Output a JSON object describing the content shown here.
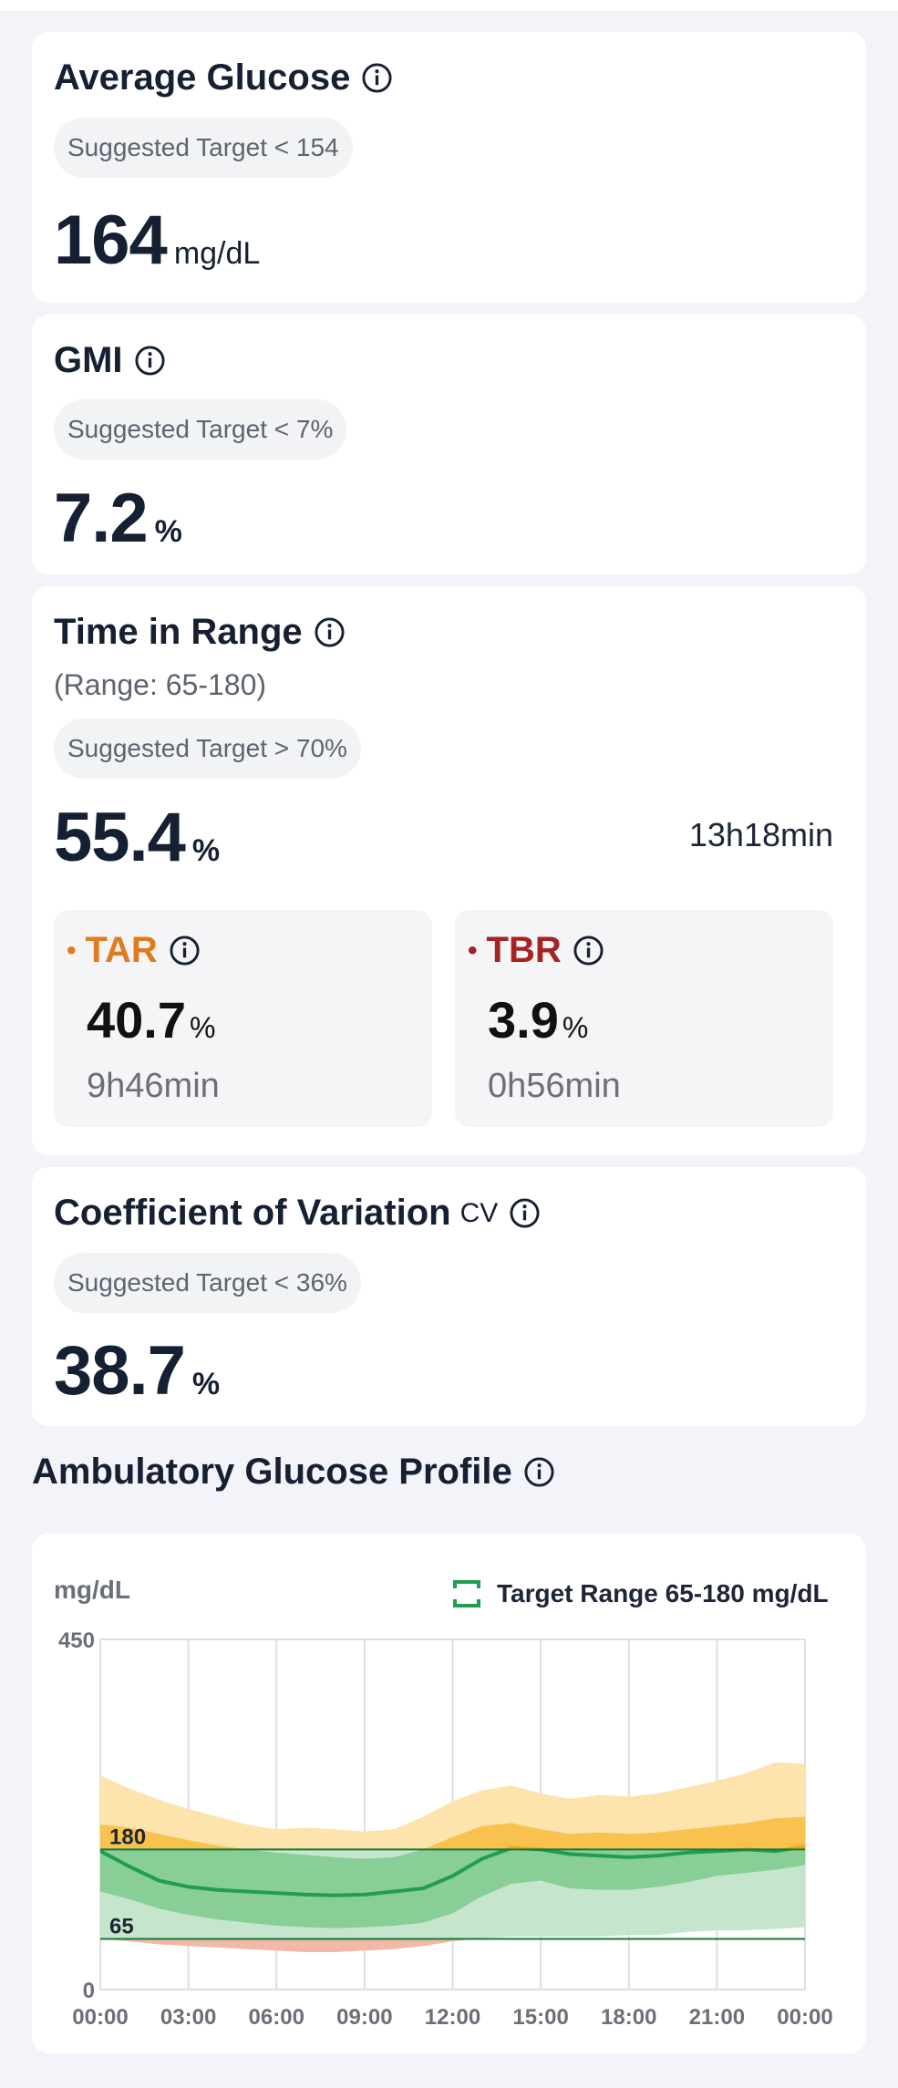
{
  "average_glucose": {
    "title": "Average Glucose",
    "target": "Suggested Target < 154",
    "value": "164",
    "unit": "mg/dL"
  },
  "gmi": {
    "title": "GMI",
    "target": "Suggested Target < 7%",
    "value": "7.2",
    "unit": "%"
  },
  "time_in_range": {
    "title": "Time in Range",
    "range": "(Range: 65-180)",
    "target": "Suggested Target > 70%",
    "value": "55.4",
    "unit": "%",
    "duration": "13h18min",
    "tar": {
      "label": "TAR",
      "value": "40.7",
      "unit": "%",
      "duration": "9h46min",
      "color": "#e07b1f"
    },
    "tbr": {
      "label": "TBR",
      "value": "3.9",
      "unit": "%",
      "duration": "0h56min",
      "color": "#a52323"
    }
  },
  "cv": {
    "title": "Coefficient of Variation",
    "abbr": "CV",
    "target": "Suggested Target < 36%",
    "value": "38.7",
    "unit": "%"
  },
  "agp": {
    "title": "Ambulatory Glucose Profile",
    "ylabel": "mg/dL",
    "legend": "Target Range 65-180 mg/dL"
  },
  "chart_data": {
    "type": "area",
    "ylabel": "mg/dL",
    "ylim": [
      0,
      450
    ],
    "y_ticks": [
      450,
      0
    ],
    "target_lines": [
      180,
      65
    ],
    "x_ticks": [
      "00:00",
      "03:00",
      "06:00",
      "09:00",
      "12:00",
      "15:00",
      "18:00",
      "21:00",
      "00:00"
    ],
    "x_hours": [
      0,
      1,
      2,
      3,
      4,
      5,
      6,
      7,
      8,
      9,
      10,
      11,
      12,
      13,
      14,
      15,
      16,
      17,
      18,
      19,
      20,
      21,
      22,
      23,
      24
    ],
    "series": [
      {
        "name": "p95",
        "values": [
          275,
          258,
          244,
          232,
          222,
          212,
          206,
          208,
          206,
          203,
          206,
          222,
          242,
          256,
          262,
          252,
          245,
          250,
          248,
          252,
          260,
          268,
          278,
          292,
          290
        ]
      },
      {
        "name": "p75",
        "values": [
          212,
          208,
          200,
          192,
          185,
          180,
          176,
          173,
          170,
          168,
          170,
          180,
          196,
          210,
          214,
          206,
          200,
          202,
          200,
          202,
          206,
          210,
          214,
          220,
          222
        ]
      },
      {
        "name": "median",
        "values": [
          178,
          158,
          140,
          132,
          128,
          126,
          124,
          122,
          121,
          122,
          126,
          130,
          146,
          168,
          182,
          180,
          174,
          172,
          170,
          172,
          176,
          178,
          180,
          178,
          184
        ]
      },
      {
        "name": "p25",
        "values": [
          126,
          116,
          104,
          96,
          90,
          86,
          82,
          80,
          79,
          80,
          82,
          86,
          98,
          120,
          136,
          140,
          130,
          128,
          128,
          132,
          138,
          146,
          150,
          154,
          160
        ]
      },
      {
        "name": "p5",
        "values": [
          65,
          62,
          58,
          56,
          54,
          52,
          50,
          48,
          48,
          50,
          52,
          56,
          62,
          66,
          68,
          68,
          68,
          68,
          70,
          70,
          74,
          76,
          76,
          78,
          80
        ]
      }
    ],
    "colors": {
      "outer_high": "#f9d3c4",
      "outer_band": "#fde4ad",
      "inner_band": "#f9c24f",
      "inner_in_range": "#89cd97",
      "outer_in_range": "#c5e6cc",
      "low_band": "#f3b8a8",
      "median": "#f1a51c",
      "median_in_range": "#1f9e4f",
      "target_line": "#137a36"
    }
  }
}
